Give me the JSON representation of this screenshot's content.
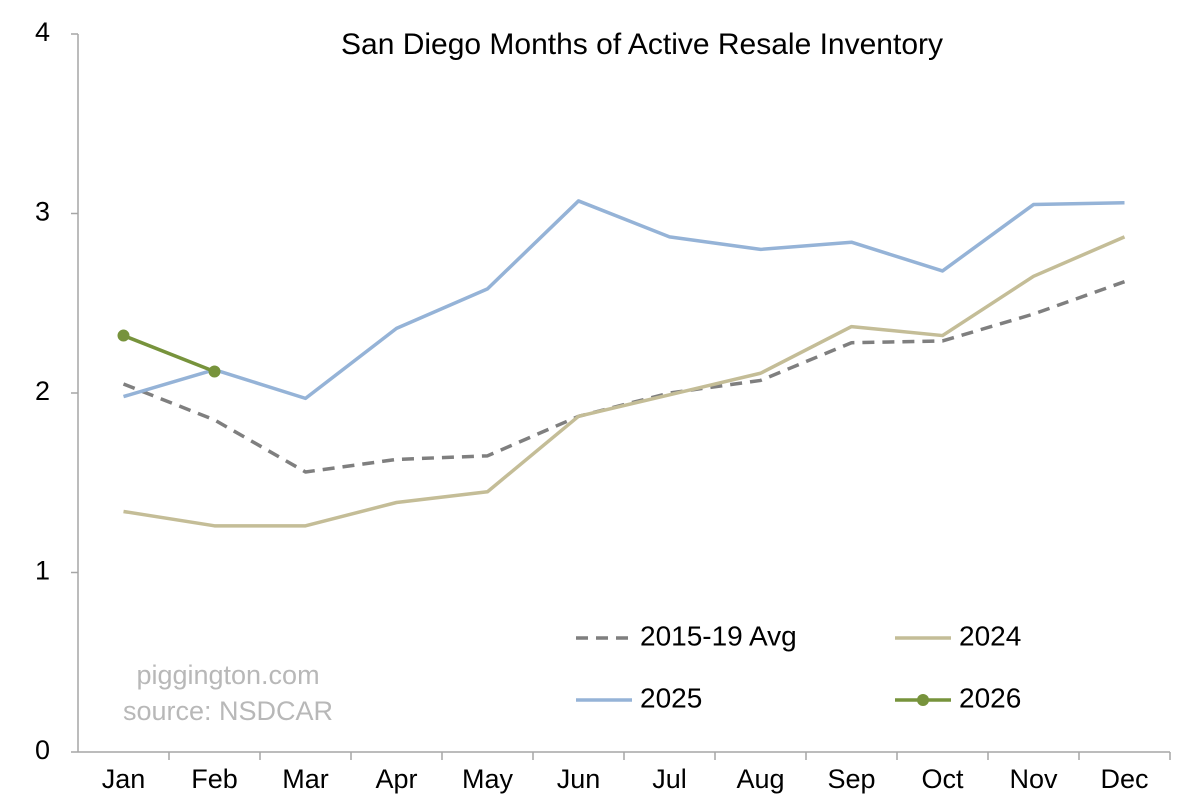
{
  "chart_data": {
    "type": "line",
    "title": "San Diego Months of Active Resale Inventory",
    "annotations": [
      "piggington.com",
      "source: NSDCAR"
    ],
    "categories": [
      "Jan",
      "Feb",
      "Mar",
      "Apr",
      "May",
      "Jun",
      "Jul",
      "Aug",
      "Sep",
      "Oct",
      "Nov",
      "Dec"
    ],
    "series": [
      {
        "name": "2015-19 Avg",
        "color": "#7f7f7f",
        "style": "dashed",
        "marker": false,
        "values": [
          2.05,
          1.85,
          1.56,
          1.63,
          1.65,
          1.87,
          2.0,
          2.07,
          2.28,
          2.29,
          2.44,
          2.62
        ]
      },
      {
        "name": "2024",
        "color": "#c4bd97",
        "style": "solid",
        "marker": false,
        "values": [
          1.34,
          1.26,
          1.26,
          1.39,
          1.45,
          1.87,
          1.99,
          2.11,
          2.37,
          2.32,
          2.65,
          2.87
        ]
      },
      {
        "name": "2025",
        "color": "#95b3d7",
        "style": "solid",
        "marker": false,
        "values": [
          1.98,
          2.13,
          1.97,
          2.36,
          2.58,
          3.07,
          2.87,
          2.8,
          2.84,
          2.68,
          3.05,
          3.06
        ]
      },
      {
        "name": "2026",
        "color": "#77933c",
        "style": "solid",
        "marker": true,
        "values": [
          2.32,
          2.12,
          null,
          null,
          null,
          null,
          null,
          null,
          null,
          null,
          null,
          null
        ]
      }
    ],
    "ylim": [
      0,
      4
    ],
    "yticks": [
      0,
      1,
      2,
      3,
      4
    ],
    "grid": false,
    "legend": "bottom-right"
  }
}
